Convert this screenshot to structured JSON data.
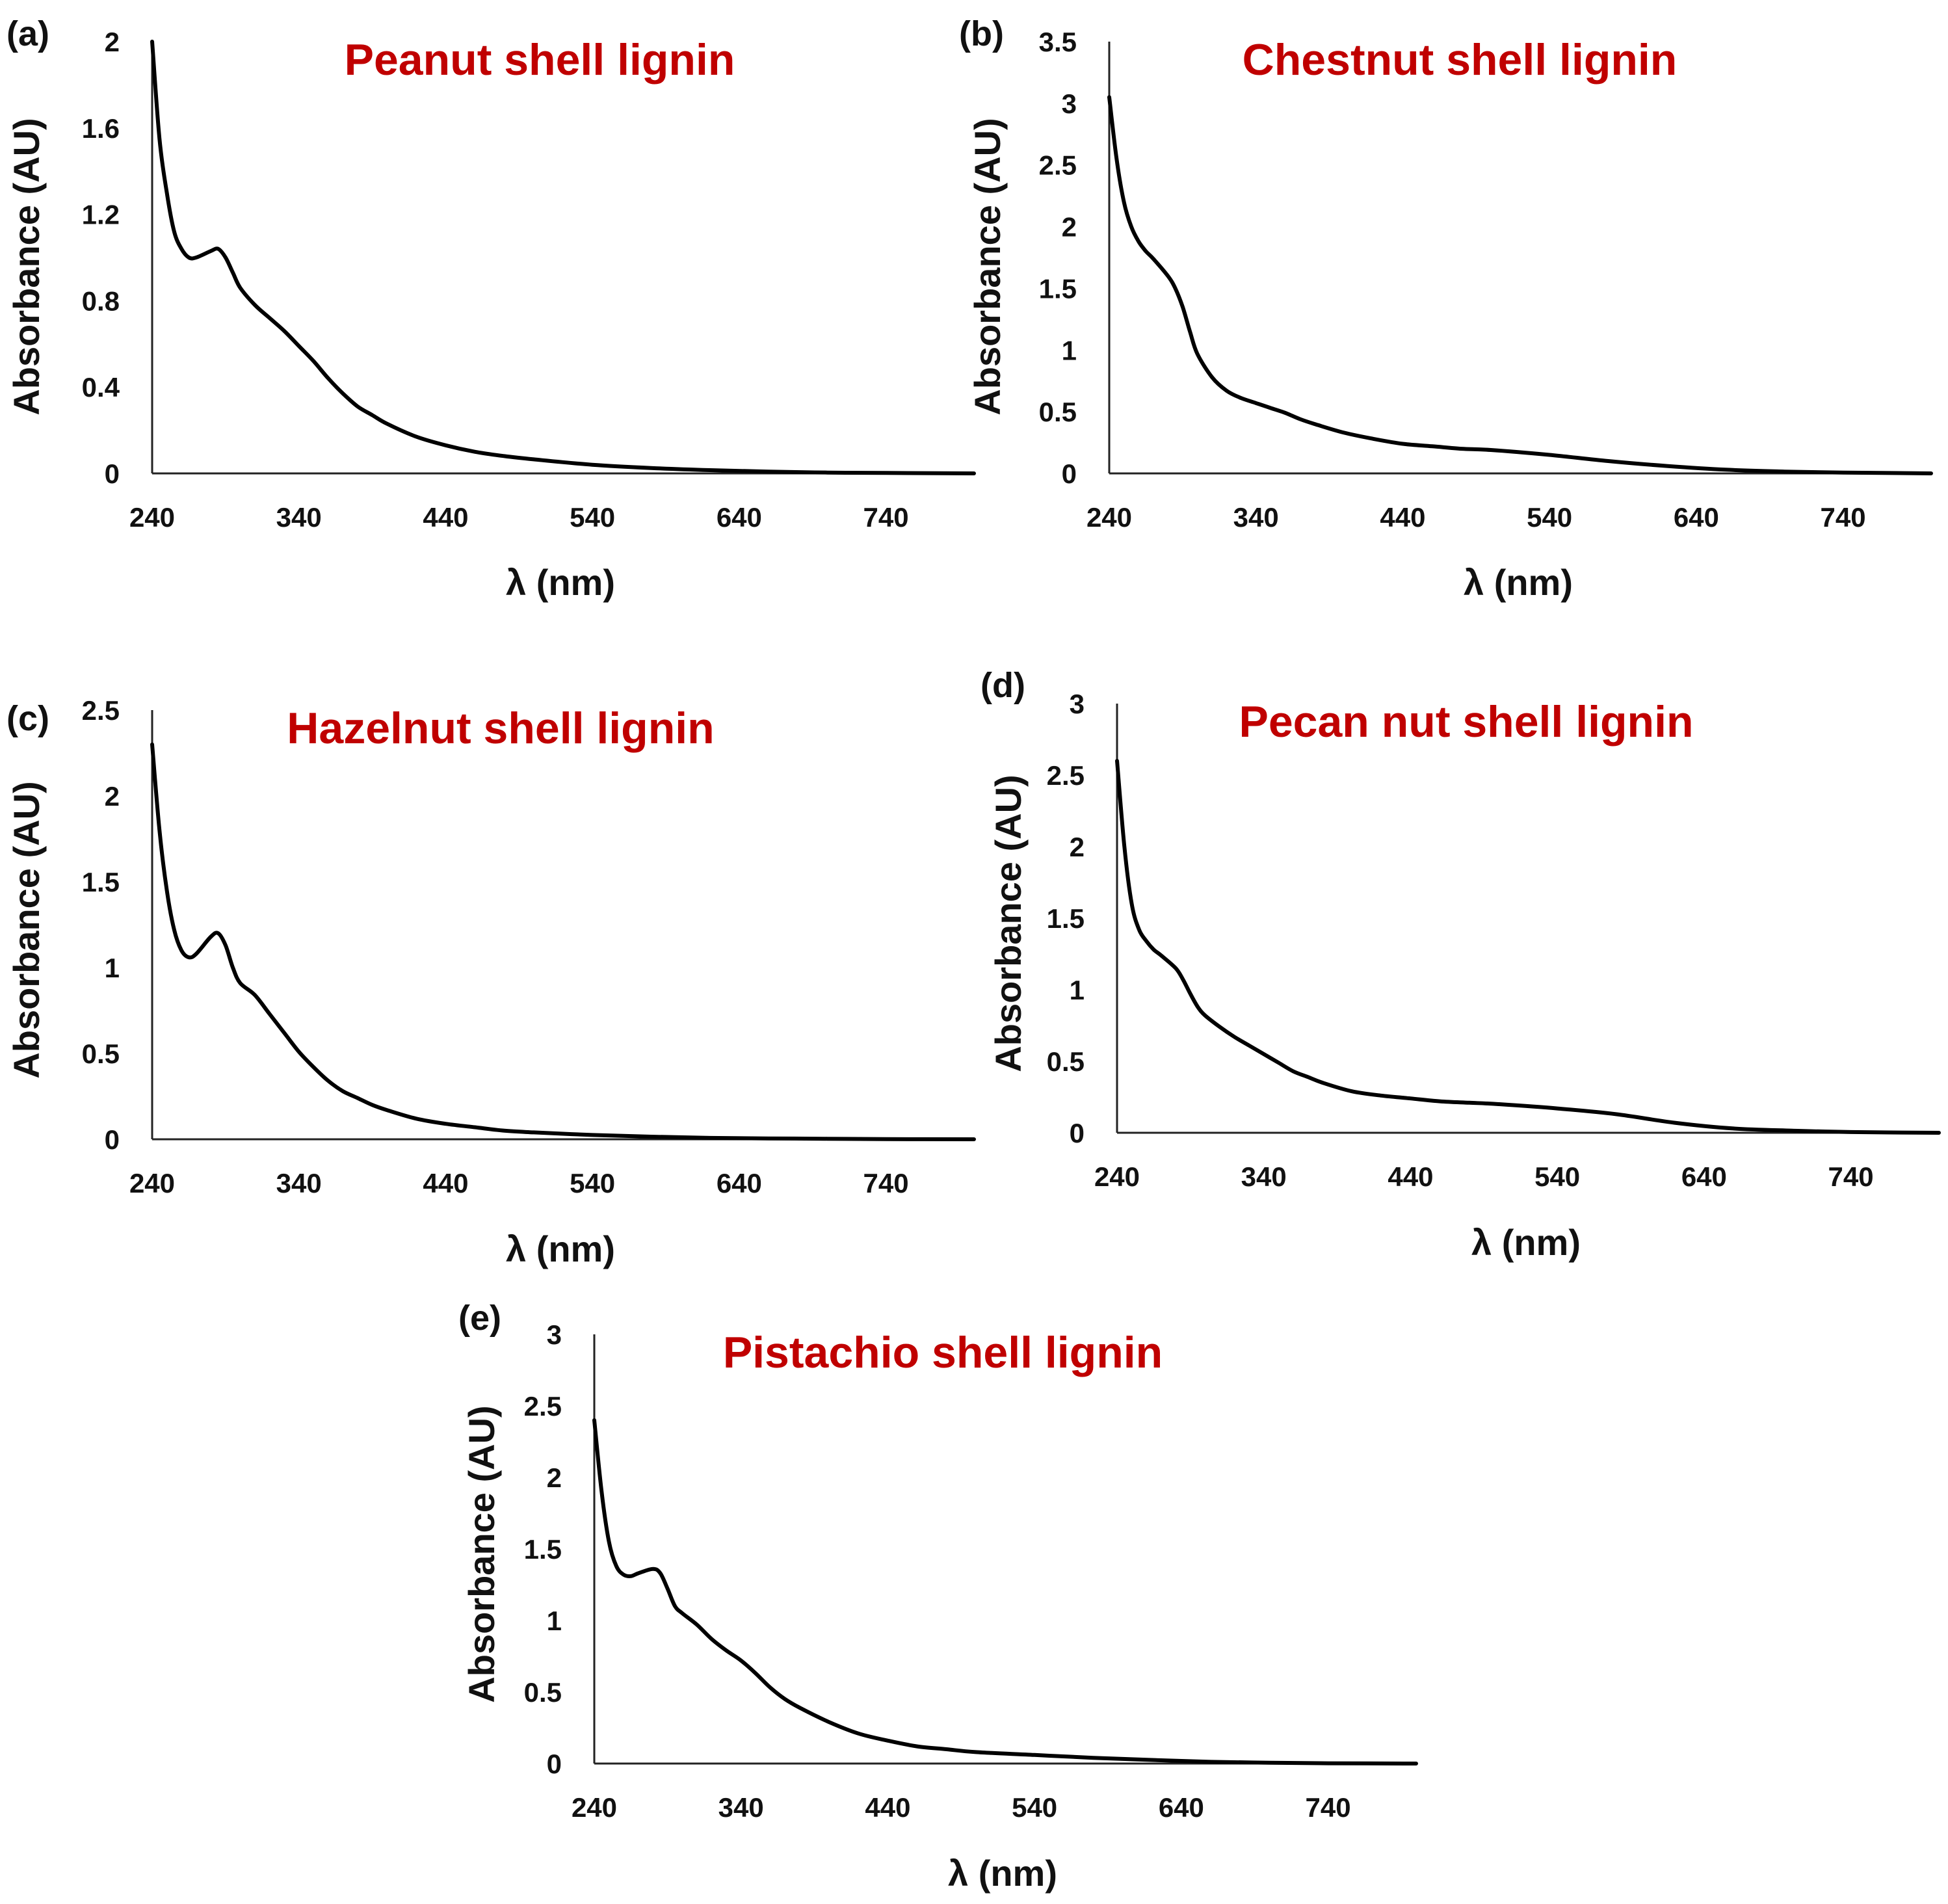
{
  "figure": {
    "description_panels": [
      "a",
      "b",
      "c",
      "d",
      "e"
    ]
  },
  "colors": {
    "title": "#c00000",
    "line": "#000000",
    "axis": "#222222",
    "text": "#111111"
  },
  "chart_data": [
    {
      "panel": "(a)",
      "type": "line",
      "title": "Peanut shell lignin",
      "xlabel": "λ (nm)",
      "ylabel": "Absorbance (AU)",
      "xlim": [
        240,
        800
      ],
      "ylim": [
        0,
        2
      ],
      "xticks": [
        240,
        340,
        440,
        540,
        640,
        740
      ],
      "xtick_labels": [
        "240",
        "340",
        "440",
        "540",
        "640",
        "740"
      ],
      "yticks": [
        0,
        0.4,
        0.8,
        1.2,
        1.6,
        2
      ],
      "ytick_labels": [
        "0",
        "0.4",
        "0.8",
        "1.2",
        "1.6",
        "2"
      ],
      "series": [
        {
          "name": "Peanut shell lignin",
          "x": [
            240,
            245,
            250,
            255,
            260,
            265,
            270,
            280,
            285,
            290,
            295,
            300,
            310,
            320,
            330,
            340,
            350,
            360,
            370,
            380,
            390,
            400,
            420,
            440,
            460,
            480,
            500,
            540,
            580,
            620,
            660,
            700,
            740,
            800
          ],
          "y": [
            2.0,
            1.55,
            1.3,
            1.12,
            1.04,
            1.0,
            1.0,
            1.03,
            1.04,
            1.0,
            0.93,
            0.86,
            0.78,
            0.72,
            0.66,
            0.59,
            0.52,
            0.44,
            0.37,
            0.31,
            0.27,
            0.23,
            0.17,
            0.13,
            0.1,
            0.08,
            0.065,
            0.04,
            0.025,
            0.015,
            0.008,
            0.004,
            0.002,
            0.0
          ]
        }
      ]
    },
    {
      "panel": "(b)",
      "type": "line",
      "title": "Chestnut shell lignin",
      "xlabel": "λ (nm)",
      "ylabel": "Absorbance (AU)",
      "xlim": [
        240,
        800
      ],
      "ylim": [
        0,
        3.5
      ],
      "xticks": [
        240,
        340,
        440,
        540,
        640,
        740
      ],
      "xtick_labels": [
        "240",
        "340",
        "440",
        "540",
        "640",
        "740"
      ],
      "yticks": [
        0,
        0.5,
        1,
        1.5,
        2,
        2.5,
        3,
        3.5
      ],
      "ytick_labels": [
        "0",
        "0.5",
        "1",
        "1.5",
        "2",
        "2.5",
        "3",
        "3.5"
      ],
      "series": [
        {
          "name": "Chestnut shell lignin",
          "x": [
            240,
            245,
            250,
            255,
            260,
            265,
            270,
            280,
            285,
            290,
            295,
            300,
            310,
            320,
            330,
            340,
            350,
            360,
            370,
            380,
            400,
            420,
            440,
            460,
            480,
            500,
            540,
            580,
            620,
            660,
            700,
            740,
            800
          ],
          "y": [
            3.05,
            2.55,
            2.2,
            2.0,
            1.88,
            1.8,
            1.74,
            1.6,
            1.5,
            1.35,
            1.15,
            0.97,
            0.78,
            0.67,
            0.61,
            0.57,
            0.53,
            0.49,
            0.44,
            0.4,
            0.33,
            0.28,
            0.24,
            0.22,
            0.2,
            0.19,
            0.15,
            0.1,
            0.06,
            0.03,
            0.015,
            0.007,
            0.0
          ]
        }
      ]
    },
    {
      "panel": "(c)",
      "type": "line",
      "title": "Hazelnut shell lignin",
      "xlabel": "λ (nm)",
      "ylabel": "Absorbance (AU)",
      "xlim": [
        240,
        800
      ],
      "ylim": [
        0,
        2.5
      ],
      "xticks": [
        240,
        340,
        440,
        540,
        640,
        740
      ],
      "xtick_labels": [
        "240",
        "340",
        "440",
        "540",
        "640",
        "740"
      ],
      "yticks": [
        0,
        0.5,
        1,
        1.5,
        2,
        2.5
      ],
      "ytick_labels": [
        "0",
        "0.5",
        "1",
        "1.5",
        "2",
        "2.5"
      ],
      "series": [
        {
          "name": "Hazelnut shell lignin",
          "x": [
            240,
            245,
            250,
            255,
            260,
            265,
            270,
            280,
            285,
            290,
            295,
            300,
            310,
            320,
            330,
            340,
            350,
            360,
            370,
            380,
            390,
            400,
            420,
            440,
            460,
            480,
            500,
            540,
            580,
            620,
            660,
            700,
            740,
            800
          ],
          "y": [
            2.3,
            1.8,
            1.45,
            1.22,
            1.1,
            1.06,
            1.08,
            1.18,
            1.2,
            1.13,
            1.0,
            0.91,
            0.84,
            0.73,
            0.62,
            0.51,
            0.42,
            0.34,
            0.28,
            0.24,
            0.2,
            0.17,
            0.12,
            0.09,
            0.07,
            0.05,
            0.04,
            0.025,
            0.015,
            0.008,
            0.005,
            0.003,
            0.001,
            0.0
          ]
        }
      ]
    },
    {
      "panel": "(d)",
      "type": "line",
      "title": "Pecan nut shell lignin",
      "xlabel": "λ (nm)",
      "ylabel": "Absorbance (AU)",
      "xlim": [
        240,
        800
      ],
      "ylim": [
        0,
        3
      ],
      "xticks": [
        240,
        340,
        440,
        540,
        640,
        740
      ],
      "xtick_labels": [
        "240",
        "340",
        "440",
        "540",
        "640",
        "740"
      ],
      "yticks": [
        0,
        0.5,
        1,
        1.5,
        2,
        2.5,
        3
      ],
      "ytick_labels": [
        "0",
        "0.5",
        "1",
        "1.5",
        "2",
        "2.5",
        "3"
      ],
      "series": [
        {
          "name": "Pecan nut shell lignin",
          "x": [
            240,
            245,
            250,
            255,
            260,
            265,
            270,
            280,
            285,
            290,
            295,
            300,
            310,
            320,
            330,
            340,
            350,
            360,
            370,
            380,
            400,
            420,
            440,
            460,
            480,
            500,
            540,
            580,
            620,
            660,
            700,
            740,
            800
          ],
          "y": [
            2.6,
            2.0,
            1.6,
            1.42,
            1.34,
            1.28,
            1.24,
            1.15,
            1.07,
            0.97,
            0.88,
            0.82,
            0.74,
            0.67,
            0.61,
            0.55,
            0.49,
            0.43,
            0.39,
            0.35,
            0.29,
            0.26,
            0.24,
            0.22,
            0.21,
            0.2,
            0.17,
            0.13,
            0.07,
            0.03,
            0.015,
            0.005,
            0.0
          ]
        }
      ]
    },
    {
      "panel": "(e)",
      "type": "line",
      "title": "Pistachio shell lignin",
      "xlabel": "λ (nm)",
      "ylabel": "Absorbance (AU)",
      "xlim": [
        240,
        800
      ],
      "ylim": [
        0,
        3
      ],
      "xticks": [
        240,
        340,
        440,
        540,
        640,
        740
      ],
      "xtick_labels": [
        "240",
        "340",
        "440",
        "540",
        "640",
        "740"
      ],
      "yticks": [
        0,
        0.5,
        1,
        1.5,
        2,
        2.5,
        3
      ],
      "ytick_labels": [
        "0",
        "0.5",
        "1",
        "1.5",
        "2",
        "2.5",
        "3"
      ],
      "series": [
        {
          "name": "Pistachio shell lignin",
          "x": [
            240,
            245,
            250,
            255,
            260,
            265,
            270,
            280,
            285,
            290,
            295,
            300,
            310,
            320,
            330,
            340,
            350,
            360,
            370,
            380,
            400,
            420,
            440,
            460,
            480,
            500,
            540,
            580,
            620,
            660,
            700,
            740,
            800
          ],
          "y": [
            2.4,
            1.9,
            1.55,
            1.38,
            1.32,
            1.31,
            1.33,
            1.36,
            1.33,
            1.22,
            1.1,
            1.05,
            0.97,
            0.87,
            0.79,
            0.72,
            0.63,
            0.53,
            0.45,
            0.39,
            0.29,
            0.21,
            0.16,
            0.12,
            0.1,
            0.08,
            0.06,
            0.04,
            0.025,
            0.012,
            0.006,
            0.002,
            0.0
          ]
        }
      ]
    }
  ]
}
